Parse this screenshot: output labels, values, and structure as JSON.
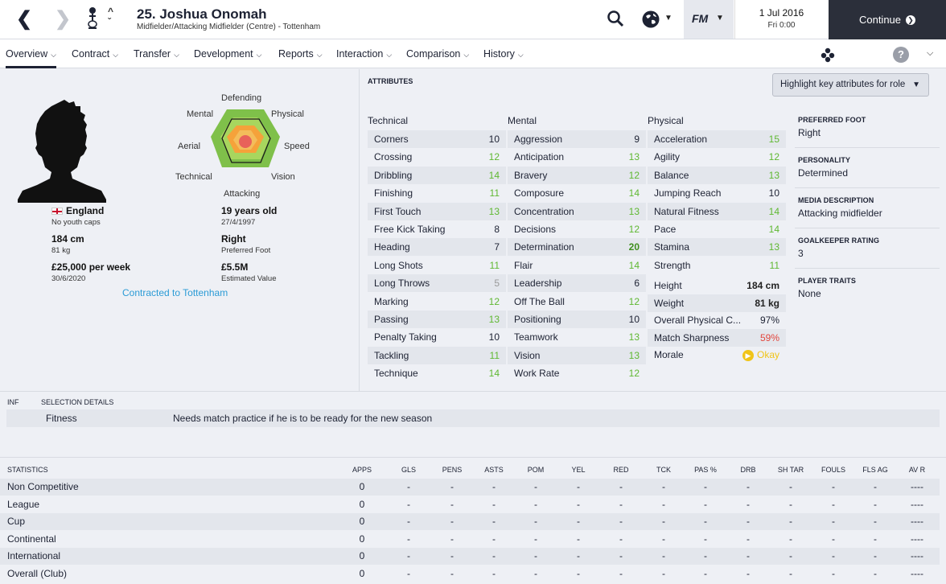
{
  "header": {
    "player_title": "25. Joshua Onomah",
    "player_subtitle": "Midfielder/Attacking Midfielder (Centre) - Tottenham",
    "date_line1": "1 Jul 2016",
    "date_line2": "Fri 0:00",
    "fm_label": "FM",
    "continue_label": "Continue"
  },
  "menu": [
    {
      "label": "Overview"
    },
    {
      "label": "Contract"
    },
    {
      "label": "Transfer"
    },
    {
      "label": "Development"
    },
    {
      "label": "Reports"
    },
    {
      "label": "Interaction"
    },
    {
      "label": "Comparison"
    },
    {
      "label": "History"
    }
  ],
  "radar": {
    "labels": [
      "Defending",
      "Physical",
      "Speed",
      "Vision",
      "Attacking",
      "Technical",
      "Aerial",
      "Mental"
    ]
  },
  "profile": {
    "nation": "England",
    "youth_caps": "No youth caps",
    "age": "19 years old",
    "dob": "27/4/1997",
    "height": "184 cm",
    "weight": "81 kg",
    "foot": "Right",
    "foot_label": "Preferred Foot",
    "wage": "£25,000 per week",
    "contract_end": "30/6/2020",
    "value": "£5.5M",
    "value_label": "Estimated Value",
    "contract_text": "Contracted to Tottenham"
  },
  "attributes": {
    "heading": "ATTRIBUTES",
    "highlight_label": "Highlight key attributes for role",
    "technical_label": "Technical",
    "mental_label": "Mental",
    "physical_label": "Physical",
    "technical": [
      {
        "name": "Corners",
        "value": "10"
      },
      {
        "name": "Crossing",
        "value": "12"
      },
      {
        "name": "Dribbling",
        "value": "14"
      },
      {
        "name": "Finishing",
        "value": "11"
      },
      {
        "name": "First Touch",
        "value": "13"
      },
      {
        "name": "Free Kick Taking",
        "value": "8"
      },
      {
        "name": "Heading",
        "value": "7"
      },
      {
        "name": "Long Shots",
        "value": "11"
      },
      {
        "name": "Long Throws",
        "value": "5"
      },
      {
        "name": "Marking",
        "value": "12"
      },
      {
        "name": "Passing",
        "value": "13"
      },
      {
        "name": "Penalty Taking",
        "value": "10"
      },
      {
        "name": "Tackling",
        "value": "11"
      },
      {
        "name": "Technique",
        "value": "14"
      }
    ],
    "mental": [
      {
        "name": "Aggression",
        "value": "9"
      },
      {
        "name": "Anticipation",
        "value": "13"
      },
      {
        "name": "Bravery",
        "value": "12"
      },
      {
        "name": "Composure",
        "value": "14"
      },
      {
        "name": "Concentration",
        "value": "13"
      },
      {
        "name": "Decisions",
        "value": "12"
      },
      {
        "name": "Determination",
        "value": "20"
      },
      {
        "name": "Flair",
        "value": "14"
      },
      {
        "name": "Leadership",
        "value": "6"
      },
      {
        "name": "Off The Ball",
        "value": "12"
      },
      {
        "name": "Positioning",
        "value": "10"
      },
      {
        "name": "Teamwork",
        "value": "13"
      },
      {
        "name": "Vision",
        "value": "13"
      },
      {
        "name": "Work Rate",
        "value": "12"
      }
    ],
    "physical": [
      {
        "name": "Acceleration",
        "value": "15"
      },
      {
        "name": "Agility",
        "value": "12"
      },
      {
        "name": "Balance",
        "value": "13"
      },
      {
        "name": "Jumping Reach",
        "value": "10"
      },
      {
        "name": "Natural Fitness",
        "value": "14"
      },
      {
        "name": "Pace",
        "value": "14"
      },
      {
        "name": "Stamina",
        "value": "13"
      },
      {
        "name": "Strength",
        "value": "11"
      }
    ],
    "physical_extra": [
      {
        "name": "Height",
        "value": "184 cm"
      },
      {
        "name": "Weight",
        "value": "81 kg"
      },
      {
        "name": "Overall Physical C...",
        "value": "97%"
      },
      {
        "name": "Match Sharpness",
        "value": "59%"
      },
      {
        "name": "Morale",
        "value": "Okay"
      }
    ]
  },
  "side_info": [
    {
      "heading": "PREFERRED FOOT",
      "value": "Right"
    },
    {
      "heading": "PERSONALITY",
      "value": "Determined"
    },
    {
      "heading": "MEDIA DESCRIPTION",
      "value": "Attacking midfielder"
    },
    {
      "heading": "GOALKEEPER RATING",
      "value": "3"
    },
    {
      "heading": "PLAYER TRAITS",
      "value": "None"
    }
  ],
  "selection": {
    "col_inf": "INF",
    "col_details": "SELECTION DETAILS",
    "row_label": "Fitness",
    "row_text": "Needs match practice if he is to be ready for the new season"
  },
  "statistics": {
    "headers": [
      "STATISTICS",
      "APPS",
      "GLS",
      "PENS",
      "ASTS",
      "POM",
      "YEL",
      "RED",
      "TCK",
      "PAS %",
      "DRB",
      "SH TAR",
      "FOULS",
      "FLS AG",
      "AV R"
    ],
    "rows": [
      {
        "label": "Non Competitive",
        "cells": [
          "0",
          "-",
          "-",
          "-",
          "-",
          "-",
          "-",
          "-",
          "-",
          "-",
          "-",
          "-",
          "-",
          "----"
        ]
      },
      {
        "label": "League",
        "cells": [
          "0",
          "-",
          "-",
          "-",
          "-",
          "-",
          "-",
          "-",
          "-",
          "-",
          "-",
          "-",
          "-",
          "----"
        ]
      },
      {
        "label": "Cup",
        "cells": [
          "0",
          "-",
          "-",
          "-",
          "-",
          "-",
          "-",
          "-",
          "-",
          "-",
          "-",
          "-",
          "-",
          "----"
        ]
      },
      {
        "label": "Continental",
        "cells": [
          "0",
          "-",
          "-",
          "-",
          "-",
          "-",
          "-",
          "-",
          "-",
          "-",
          "-",
          "-",
          "-",
          "----"
        ]
      },
      {
        "label": "International",
        "cells": [
          "0",
          "-",
          "-",
          "-",
          "-",
          "-",
          "-",
          "-",
          "-",
          "-",
          "-",
          "-",
          "-",
          "----"
        ]
      },
      {
        "label": "Overall (Club)",
        "cells": [
          "0",
          "-",
          "-",
          "-",
          "-",
          "-",
          "-",
          "-",
          "-",
          "-",
          "-",
          "-",
          "-",
          "----"
        ]
      }
    ]
  },
  "colors": {
    "green": "#5fb832",
    "dark_green": "#3f8f1e",
    "grey_val": "#9a9a9a",
    "red_val": "#e2453c",
    "okay": "#f0c419"
  }
}
